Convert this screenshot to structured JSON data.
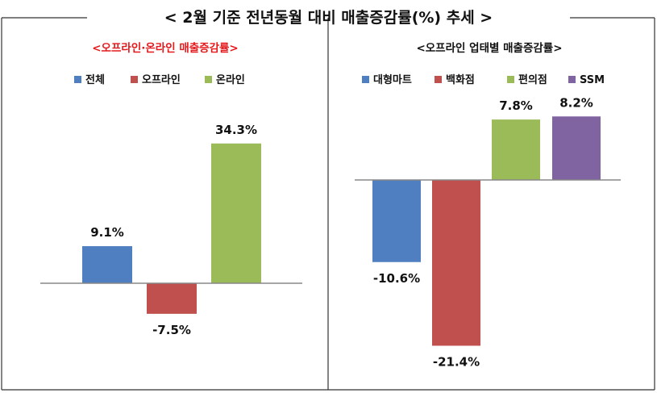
{
  "title": "< 2월 기준 전년동월 대비 매출증감률(%) 추세 >",
  "chart_data": [
    {
      "type": "bar",
      "title": "<오프라인·온라인 매출증감률>",
      "title_color": "#e3191c",
      "legend_position": "top",
      "grid": false,
      "ylim": [
        -12,
        40
      ],
      "categories": [
        "전체",
        "오프라인",
        "온라인"
      ],
      "series": [
        {
          "name": "전체",
          "category": "전체",
          "value": 9.1,
          "label": "9.1%",
          "color": "#4f7fc0"
        },
        {
          "name": "오프라인",
          "category": "오프라인",
          "value": -7.5,
          "label": "-7.5%",
          "color": "#c0504d"
        },
        {
          "name": "온라인",
          "category": "온라인",
          "value": 34.3,
          "label": "34.3%",
          "color": "#9bbb59"
        }
      ]
    },
    {
      "type": "bar",
      "title": "<오프라인 업태별 매출증감률>",
      "title_color": "#111111",
      "legend_position": "top",
      "grid": false,
      "ylim": [
        -26,
        12
      ],
      "categories": [
        "대형마트",
        "백화점",
        "편의점",
        "SSM"
      ],
      "series": [
        {
          "name": "대형마트",
          "category": "대형마트",
          "value": -10.6,
          "label": "-10.6%",
          "color": "#4f7fc0"
        },
        {
          "name": "백화점",
          "category": "백화점",
          "value": -21.4,
          "label": "-21.4%",
          "color": "#c0504d"
        },
        {
          "name": "편의점",
          "category": "편의점",
          "value": 7.8,
          "label": "7.8%",
          "color": "#9bbb59"
        },
        {
          "name": "SSM",
          "category": "SSM",
          "value": 8.2,
          "label": "8.2%",
          "color": "#8064a2"
        }
      ]
    }
  ]
}
